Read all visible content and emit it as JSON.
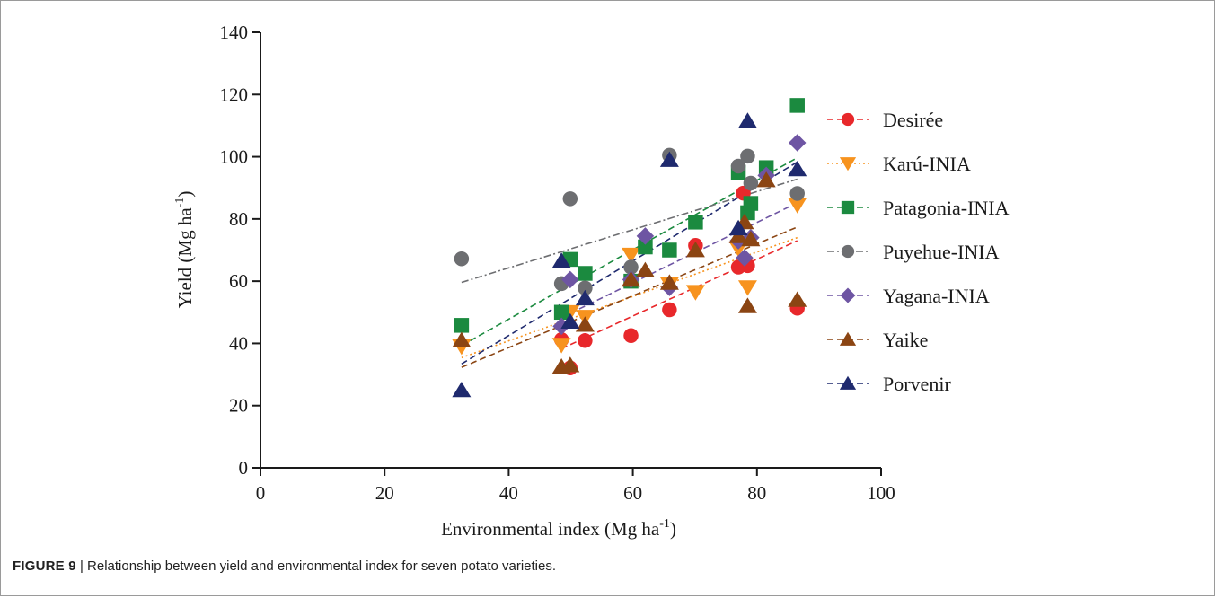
{
  "chart_data": {
    "type": "scatter",
    "title": "",
    "xlabel": "Environmental index (Mg ha",
    "xlabel_sup": "-1",
    "xlabel_end": ")",
    "ylabel": "Yield (Mg ha",
    "ylabel_sup": "-1",
    "ylabel_end": ")",
    "xlim": [
      0,
      100
    ],
    "ylim": [
      0,
      140
    ],
    "xticks": [
      0,
      20,
      40,
      60,
      80,
      100
    ],
    "yticks": [
      0,
      20,
      40,
      60,
      80,
      100,
      120,
      140
    ],
    "grid": false,
    "legend_position": "right",
    "series": [
      {
        "name": "Desirée",
        "color": "#e8282b",
        "marker": "circle",
        "line_style": "dashed",
        "x": [
          48.5,
          49.9,
          52.3,
          59.7,
          65.9,
          70.1,
          77.0,
          77.8,
          78.5,
          86.5
        ],
        "y": [
          41.2,
          32.1,
          40.9,
          42.5,
          50.8,
          71.5,
          64.5,
          88.3,
          65.0,
          51.3
        ],
        "trend": [
          [
            48.5,
            38.3
          ],
          [
            86.5,
            73.0
          ]
        ]
      },
      {
        "name": "Karú-INIA",
        "color": "#f7931e",
        "marker": "triangle-down",
        "line_style": "dotted",
        "x": [
          32.4,
          48.5,
          49.9,
          52.3,
          59.7,
          65.9,
          70.1,
          77.0,
          78.5,
          86.5
        ],
        "y": [
          39.0,
          39.5,
          50.0,
          48.5,
          68.5,
          59.0,
          56.5,
          70.5,
          58.0,
          84.5
        ],
        "trend": [
          [
            32.4,
            35.4
          ],
          [
            86.5,
            74.0
          ]
        ]
      },
      {
        "name": "Patagonia-INIA",
        "color": "#1b8a3f",
        "marker": "square",
        "line_style": "dashed",
        "x": [
          32.4,
          48.5,
          49.9,
          52.3,
          59.7,
          62.0,
          65.9,
          70.1,
          77.0,
          78.5,
          79.0,
          81.5,
          86.5
        ],
        "y": [
          45.8,
          50.0,
          67.0,
          62.5,
          60.0,
          71.0,
          70.0,
          79.0,
          95.0,
          82.0,
          85.0,
          96.5,
          116.5
        ],
        "trend": [
          [
            32.4,
            39.3
          ],
          [
            86.5,
            99.7
          ]
        ]
      },
      {
        "name": "Puyehue-INIA",
        "color": "#6d6e71",
        "marker": "circle",
        "line_style": "dashdot",
        "x": [
          32.4,
          48.5,
          49.9,
          52.3,
          59.7,
          65.9,
          77.0,
          78.5,
          79.0,
          86.5
        ],
        "y": [
          67.2,
          59.2,
          86.5,
          57.8,
          64.5,
          100.5,
          97.0,
          100.2,
          91.5,
          88.2
        ],
        "trend": [
          [
            32.4,
            59.6
          ],
          [
            86.5,
            92.8
          ]
        ]
      },
      {
        "name": "Yagana-INIA",
        "color": "#6e55a3",
        "marker": "diamond",
        "line_style": "dashed",
        "x": [
          48.5,
          49.9,
          59.7,
          62.0,
          65.9,
          77.0,
          78.0,
          79.0,
          81.5,
          86.5
        ],
        "y": [
          45.5,
          60.5,
          60.5,
          74.5,
          58.0,
          73.0,
          67.5,
          74.0,
          94.0,
          104.5
        ],
        "trend": [
          [
            48.5,
            48.3
          ],
          [
            86.5,
            85.2
          ]
        ]
      },
      {
        "name": "Yaike",
        "color": "#8b4513",
        "marker": "triangle-up",
        "line_style": "dashed",
        "x": [
          32.4,
          48.5,
          49.9,
          52.3,
          59.7,
          62.0,
          65.9,
          70.1,
          77.0,
          78.0,
          78.5,
          79.0,
          81.5,
          86.5
        ],
        "y": [
          41.0,
          32.5,
          33.0,
          46.0,
          60.5,
          63.5,
          59.5,
          70.0,
          74.5,
          79.0,
          52.0,
          73.5,
          92.5,
          54.0
        ],
        "trend": [
          [
            32.4,
            32.3
          ],
          [
            86.5,
            77.4
          ]
        ]
      },
      {
        "name": "Porvenir",
        "color": "#1f2a6e",
        "marker": "triangle-up",
        "line_style": "dashed",
        "x": [
          32.4,
          48.5,
          49.9,
          52.3,
          65.9,
          77.0,
          78.5,
          86.5
        ],
        "y": [
          25.0,
          66.5,
          47.0,
          54.5,
          99.0,
          77.0,
          111.5,
          96.0
        ],
        "trend": [
          [
            32.4,
            33.4
          ],
          [
            86.5,
            98.3
          ]
        ]
      }
    ]
  },
  "caption": {
    "label": "FIGURE 9",
    "separator": "|",
    "text": "Relationship between yield and environmental index for seven potato varieties."
  }
}
